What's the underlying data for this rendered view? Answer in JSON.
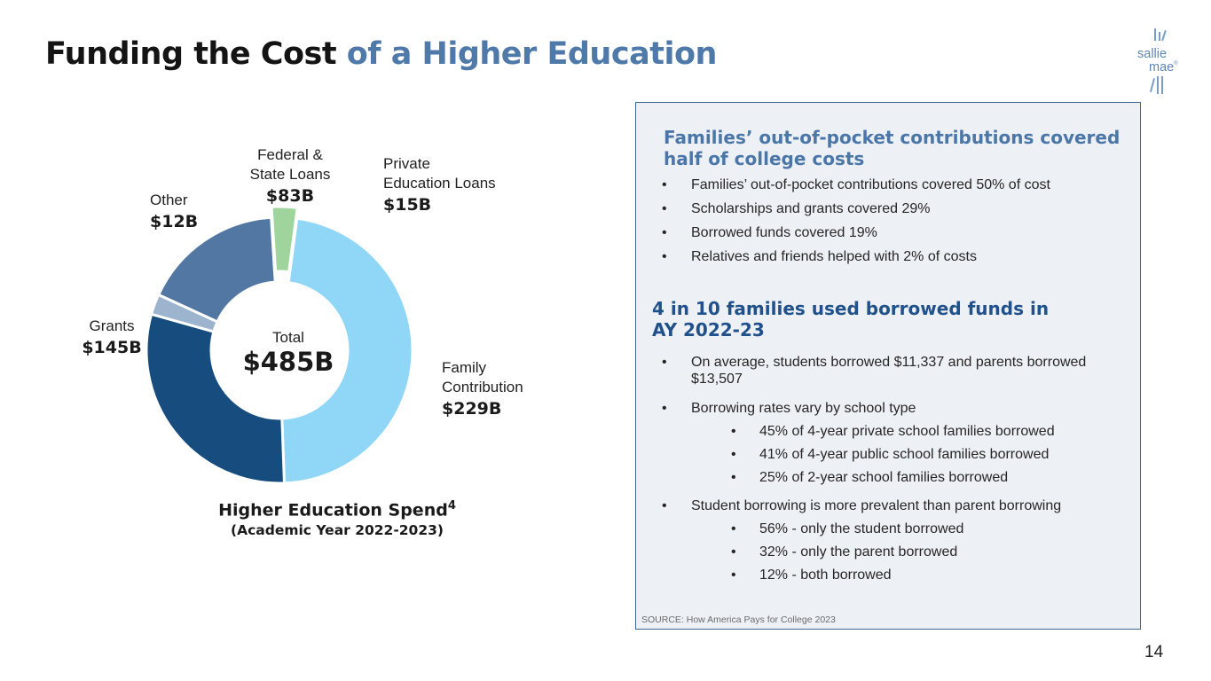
{
  "slide": {
    "title_part1": "Funding the Cost",
    "title_part2": "of a Higher Education",
    "page_number": "14"
  },
  "logo": {
    "line1": "sallie",
    "line2": "mae",
    "mark": "®"
  },
  "chart_data": {
    "type": "pie",
    "donut": true,
    "center_label": "Total",
    "center_value": "$485B",
    "title": "Higher Education Spend",
    "title_superscript": "4",
    "subtitle": "(Academic Year 2022-2023)",
    "slices": [
      {
        "name": "Family Contribution",
        "value_label": "$229B",
        "value": 229,
        "color": "#8fd6f7"
      },
      {
        "name": "Grants",
        "value_label": "$145B",
        "value": 145,
        "color": "#164d7e"
      },
      {
        "name": "Other",
        "value_label": "$12B",
        "value": 12,
        "color": "#9db4cf"
      },
      {
        "name": "Federal & State Loans",
        "value_label": "$83B",
        "value": 83,
        "color": "#5277a3"
      },
      {
        "name": "Private Education Loans",
        "value_label": "$15B",
        "value": 15,
        "color": "#9fd59d",
        "exploded": true
      }
    ],
    "labels": {
      "family": [
        "Family",
        "Contribution"
      ],
      "grants": [
        "Grants"
      ],
      "other": [
        "Other"
      ],
      "federal": [
        "Federal &",
        "State Loans"
      ],
      "private": [
        "Private",
        "Education Loans"
      ]
    }
  },
  "panel": {
    "heading1": "Families’ out-of-pocket contributions covered half of college costs",
    "bullets1": [
      "Families’ out-of-pocket contributions covered 50% of cost",
      "Scholarships and grants covered 29%",
      "Borrowed funds covered 19%",
      "Relatives and friends helped with 2% of costs"
    ],
    "heading2_line1": "4 in 10 families used borrowed funds in",
    "heading2_line2": "AY 2022-23",
    "bullets2": [
      "On average, students borrowed $11,337 and parents borrowed $13,507",
      "Borrowing rates vary by school type"
    ],
    "school_type_bullets": [
      "45% of 4-year private school families borrowed",
      "41% of 4-year public school families borrowed",
      "25% of 2-year school families borrowed"
    ],
    "bullet3": "Student borrowing is more prevalent than parent borrowing",
    "borrower_bullets": [
      "56% - only the student borrowed",
      "32% - only the parent borrowed",
      "12% - both borrowed"
    ],
    "source": "SOURCE: How America Pays for College 2023"
  },
  "colors": {
    "title_dark": "#141414",
    "title_accent": "#4f79a8",
    "panel_bg": "#edf0f5",
    "panel_border": "#3e6797"
  }
}
